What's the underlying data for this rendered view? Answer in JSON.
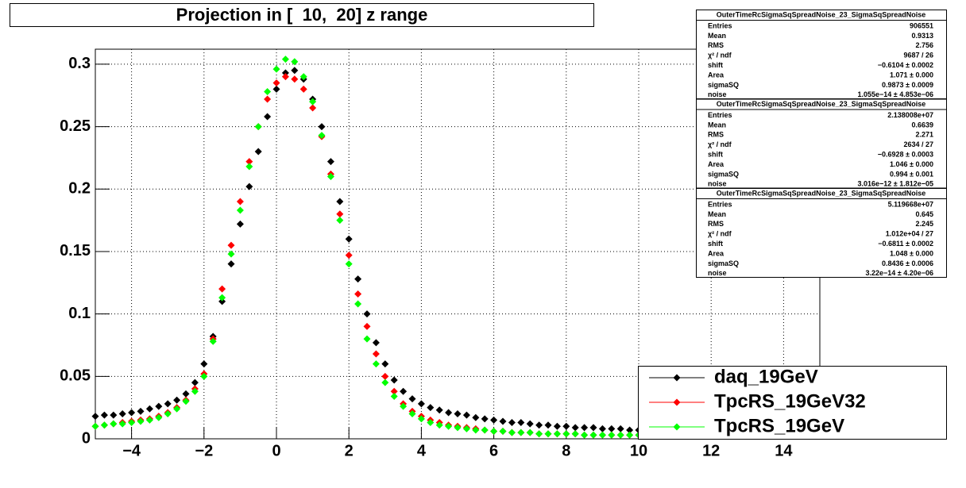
{
  "chart_data": {
    "type": "scatter",
    "title": "Projection in [  10,  20] z range",
    "x": [
      -5,
      -4.75,
      -4.5,
      -4.25,
      -4,
      -3.75,
      -3.5,
      -3.25,
      -3,
      -2.75,
      -2.5,
      -2.25,
      -2,
      -1.75,
      -1.5,
      -1.25,
      -1,
      -0.75,
      -0.5,
      -0.25,
      0,
      0.25,
      0.5,
      0.75,
      1,
      1.25,
      1.5,
      1.75,
      2,
      2.25,
      2.5,
      2.75,
      3,
      3.25,
      3.5,
      3.75,
      4,
      4.25,
      4.5,
      4.75,
      5,
      5.25,
      5.5,
      5.75,
      6,
      6.25,
      6.5,
      6.75,
      7,
      7.25,
      7.5,
      7.75,
      8,
      8.25,
      8.5,
      8.75,
      9,
      9.25,
      9.5,
      9.75,
      10
    ],
    "series": [
      {
        "name": "daq_19GeV",
        "color": "#000000",
        "values": [
          0.018,
          0.019,
          0.019,
          0.02,
          0.021,
          0.022,
          0.024,
          0.026,
          0.028,
          0.031,
          0.036,
          0.045,
          0.06,
          0.082,
          0.11,
          0.14,
          0.172,
          0.202,
          0.23,
          0.258,
          0.28,
          0.293,
          0.295,
          0.288,
          0.272,
          0.25,
          0.222,
          0.19,
          0.16,
          0.128,
          0.1,
          0.077,
          0.06,
          0.047,
          0.038,
          0.032,
          0.028,
          0.025,
          0.023,
          0.021,
          0.02,
          0.019,
          0.017,
          0.016,
          0.015,
          0.014,
          0.013,
          0.013,
          0.012,
          0.011,
          0.011,
          0.01,
          0.01,
          0.009,
          0.009,
          0.009,
          0.008,
          0.008,
          0.008,
          0.007,
          0.007
        ]
      },
      {
        "name": "TpcRS_19GeV32",
        "color": "#ff0000",
        "values": [
          0.01,
          0.011,
          0.012,
          0.013,
          0.014,
          0.015,
          0.016,
          0.018,
          0.021,
          0.025,
          0.031,
          0.04,
          0.052,
          0.08,
          0.12,
          0.155,
          0.19,
          0.222,
          0.25,
          0.272,
          0.285,
          0.29,
          0.288,
          0.28,
          0.265,
          0.242,
          0.212,
          0.18,
          0.147,
          0.116,
          0.09,
          0.068,
          0.05,
          0.038,
          0.028,
          0.022,
          0.018,
          0.015,
          0.013,
          0.011,
          0.01,
          0.009,
          0.008,
          0.007,
          0.006,
          0.006,
          0.005,
          0.005,
          0.005,
          0.004,
          0.004,
          0.004,
          0.004,
          0.004,
          0.003,
          0.003,
          0.003,
          0.003,
          0.003,
          0.003,
          0.003
        ]
      },
      {
        "name": "TpcRS_19GeV",
        "color": "#00ff00",
        "values": [
          0.01,
          0.011,
          0.012,
          0.012,
          0.013,
          0.014,
          0.015,
          0.017,
          0.02,
          0.024,
          0.03,
          0.038,
          0.05,
          0.078,
          0.113,
          0.148,
          0.183,
          0.218,
          0.25,
          0.278,
          0.296,
          0.304,
          0.302,
          0.29,
          0.27,
          0.243,
          0.21,
          0.175,
          0.14,
          0.108,
          0.08,
          0.06,
          0.045,
          0.034,
          0.026,
          0.02,
          0.016,
          0.013,
          0.011,
          0.01,
          0.009,
          0.008,
          0.007,
          0.007,
          0.006,
          0.006,
          0.005,
          0.005,
          0.005,
          0.004,
          0.004,
          0.004,
          0.004,
          0.004,
          0.003,
          0.003,
          0.003,
          0.003,
          0.003,
          0.003,
          0.003
        ]
      }
    ],
    "xlim": [
      -5,
      15
    ],
    "ylim": [
      0,
      0.312
    ],
    "xticks": [
      {
        "value": -4,
        "label": "−4"
      },
      {
        "value": -2,
        "label": "−2"
      },
      0,
      2,
      4,
      6,
      8,
      10,
      12,
      14
    ],
    "yticks": [
      0,
      0.05,
      0.1,
      0.15,
      0.2,
      0.25,
      0.3
    ],
    "grid": true,
    "legend": "lower right",
    "stats_boxes": [
      {
        "title": "OuterTimeRcSigmaSqSpreadNoise_23_SigmaSqSpreadNoise",
        "rows": [
          [
            "Entries",
            "906551"
          ],
          [
            "Mean",
            "0.9313"
          ],
          [
            "RMS",
            "2.756"
          ],
          [
            "χ² / ndf",
            "9687 / 26"
          ],
          [
            "shift",
            "−0.6104 ± 0.0002"
          ],
          [
            "Area",
            "1.071 ± 0.000"
          ],
          [
            "sigmaSQ",
            "0.9873 ± 0.0009"
          ],
          [
            "noise",
            "1.055e−14 ± 4.853e−06"
          ]
        ]
      },
      {
        "title": "OuterTimeRcSigmaSqSpreadNoise_23_SigmaSqSpreadNoise",
        "rows": [
          [
            "Entries",
            "2.138008e+07"
          ],
          [
            "Mean",
            "0.6639"
          ],
          [
            "RMS",
            "2.271"
          ],
          [
            "χ² / ndf",
            "2634 / 27"
          ],
          [
            "shift",
            "−0.6928 ± 0.0003"
          ],
          [
            "Area",
            "1.046 ± 0.000"
          ],
          [
            "sigmaSQ",
            "0.994 ± 0.001"
          ],
          [
            "noise",
            "3.016e−12 ± 1.812e−05"
          ]
        ]
      },
      {
        "title": "OuterTimeRcSigmaSqSpreadNoise_23_SigmaSqSpreadNoise",
        "rows": [
          [
            "Entries",
            "5.119668e+07"
          ],
          [
            "Mean",
            "0.645"
          ],
          [
            "RMS",
            "2.245"
          ],
          [
            "χ² / ndf",
            "1.012e+04 / 27"
          ],
          [
            "shift",
            "−0.6811 ± 0.0002"
          ],
          [
            "Area",
            "1.048 ± 0.000"
          ],
          [
            "sigmaSQ",
            "0.8436 ± 0.0006"
          ],
          [
            "noise",
            "3.22e−14 ± 4.20e−06"
          ]
        ]
      }
    ]
  }
}
